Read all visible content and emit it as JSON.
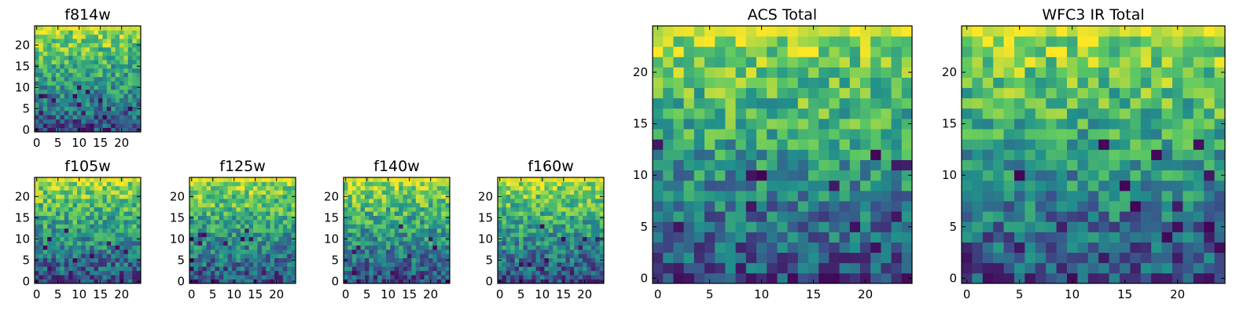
{
  "chart_data": [
    {
      "type": "heatmap",
      "title": "f814w",
      "grid_size": 25,
      "xticks": [
        "0",
        "5",
        "10",
        "15",
        "20"
      ],
      "yticks": [
        "0",
        "5",
        "10",
        "15",
        "20"
      ],
      "colormap": "viridis",
      "grid": false,
      "trend": "values increase toward the top rows (bright yellow near row 24), darker patches near rows 0-6",
      "seed": 11
    },
    {
      "type": "heatmap",
      "title": "f105w",
      "grid_size": 25,
      "xticks": [
        "0",
        "5",
        "10",
        "15",
        "20"
      ],
      "yticks": [
        "0",
        "5",
        "10",
        "15",
        "20"
      ],
      "colormap": "viridis",
      "grid": false,
      "trend": "values increase toward the top rows, dark patches in lower half",
      "seed": 23
    },
    {
      "type": "heatmap",
      "title": "f125w",
      "grid_size": 25,
      "xticks": [
        "0",
        "5",
        "10",
        "15",
        "20"
      ],
      "yticks": [
        "0",
        "5",
        "10",
        "15",
        "20"
      ],
      "colormap": "viridis",
      "grid": false,
      "trend": "mostly green-yellow, brighter toward the top",
      "seed": 37
    },
    {
      "type": "heatmap",
      "title": "f140w",
      "grid_size": 25,
      "xticks": [
        "0",
        "5",
        "10",
        "15",
        "20"
      ],
      "yticks": [
        "0",
        "5",
        "10",
        "15",
        "20"
      ],
      "colormap": "viridis",
      "grid": false,
      "trend": "values increase toward the top rows",
      "seed": 41
    },
    {
      "type": "heatmap",
      "title": "f160w",
      "grid_size": 25,
      "xticks": [
        "0",
        "5",
        "10",
        "15",
        "20"
      ],
      "yticks": [
        "0",
        "5",
        "10",
        "15",
        "20"
      ],
      "colormap": "viridis",
      "grid": false,
      "trend": "values increase toward the top, dark pixels at bottom",
      "seed": 53
    },
    {
      "type": "heatmap",
      "title": "ACS Total",
      "grid_size": 25,
      "xticks": [
        "0",
        "5",
        "10",
        "15",
        "20"
      ],
      "yticks": [
        "0",
        "5",
        "10",
        "15",
        "20"
      ],
      "colormap": "viridis",
      "grid": false,
      "trend": "yellow top rows fading to teal/blue near the bottom, scattered dark purple cells",
      "seed": 67
    },
    {
      "type": "heatmap",
      "title": "WFC3 IR Total",
      "grid_size": 25,
      "xticks": [
        "0",
        "5",
        "10",
        "15",
        "20"
      ],
      "yticks": [
        "0",
        "5",
        "10",
        "15",
        "20"
      ],
      "colormap": "viridis",
      "grid": false,
      "trend": "bright yellow top row, green bulk, scattered dark purple cells",
      "seed": 79
    }
  ],
  "colors": {
    "viridis": [
      "#440154",
      "#3b528b",
      "#21918c",
      "#5ec962",
      "#fde725"
    ]
  }
}
